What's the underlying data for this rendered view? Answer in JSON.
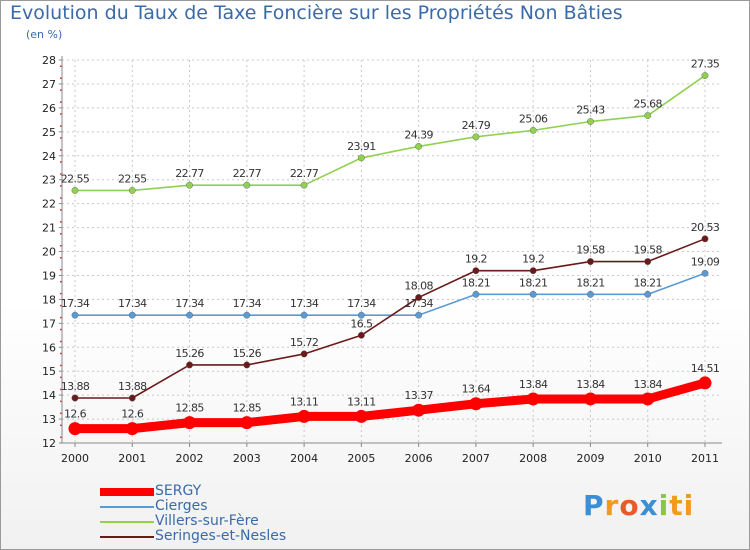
{
  "title": "Evolution du Taux de Taxe Foncière sur les Propriétés Non Bâties",
  "unit": "(en %)",
  "logo": [
    "P",
    "r",
    "o",
    "x",
    "i",
    "ti"
  ],
  "colors": {
    "SERGY": "#ff0000",
    "Cierges": "#5b9bd5",
    "Villers-sur-Fère": "#92d050",
    "Seringes-et-Nesles": "#6b1a1a"
  },
  "chart_data": {
    "type": "line",
    "title": "Evolution du Taux de Taxe Foncière sur les Propriétés Non Bâties",
    "ylabel": "(en %)",
    "xlabel": "",
    "categories": [
      "2000",
      "2001",
      "2002",
      "2003",
      "2004",
      "2005",
      "2006",
      "2007",
      "2008",
      "2009",
      "2010",
      "2011"
    ],
    "ylim": [
      12,
      28
    ],
    "yticks": [
      12,
      13,
      14,
      15,
      16,
      17,
      18,
      19,
      20,
      21,
      22,
      23,
      24,
      25,
      26,
      27,
      28
    ],
    "grid": true,
    "legend_position": "bottom-left",
    "series": [
      {
        "name": "SERGY",
        "values": [
          12.6,
          12.6,
          12.85,
          12.85,
          13.11,
          13.11,
          13.37,
          13.64,
          13.84,
          13.84,
          13.84,
          14.51
        ],
        "labels": [
          "12.6",
          "12.6",
          "12.85",
          "12.85",
          "13.11",
          "13.11",
          "13.37",
          "13.64",
          "13.84",
          "13.84",
          "13.84",
          "14.51"
        ]
      },
      {
        "name": "Cierges",
        "values": [
          17.34,
          17.34,
          17.34,
          17.34,
          17.34,
          17.34,
          17.34,
          18.21,
          18.21,
          18.21,
          18.21,
          19.09
        ],
        "labels": [
          "17.34",
          "17.34",
          "17.34",
          "17.34",
          "17.34",
          "17.34",
          "17.34",
          "18.21",
          "18.21",
          "18.21",
          "18.21",
          "19.09"
        ]
      },
      {
        "name": "Villers-sur-Fère",
        "values": [
          22.55,
          22.55,
          22.77,
          22.77,
          22.77,
          23.91,
          24.39,
          24.79,
          25.06,
          25.43,
          25.68,
          27.35
        ],
        "labels": [
          "22.55",
          "22.55",
          "22.77",
          "22.77",
          "22.77",
          "23.91",
          "24.39",
          "24.79",
          "25.06",
          "25.43",
          "25.68",
          "27.35"
        ]
      },
      {
        "name": "Seringes-et-Nesles",
        "values": [
          13.88,
          13.88,
          15.26,
          15.26,
          15.72,
          16.5,
          18.08,
          19.2,
          19.2,
          19.58,
          19.58,
          20.53
        ],
        "labels": [
          "13.88",
          "13.88",
          "15.26",
          "15.26",
          "15.72",
          "16.5",
          "18.08",
          "19.2",
          "19.2",
          "19.58",
          "19.58",
          "20.53"
        ]
      }
    ]
  }
}
